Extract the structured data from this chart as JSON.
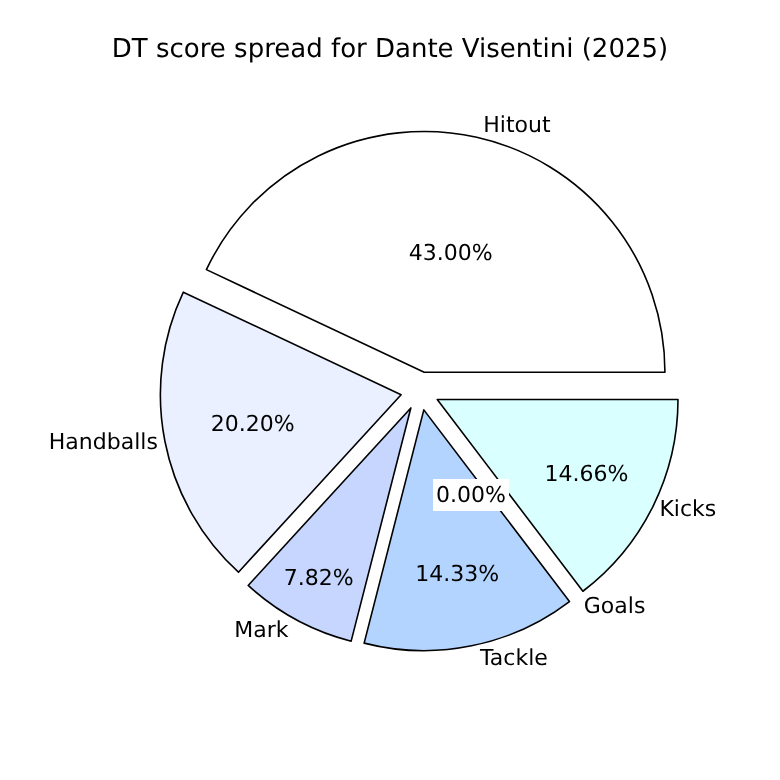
{
  "chart_data": {
    "type": "pie",
    "title": "DT score spread for Dante Visentini (2025)",
    "categories": [
      "Hitout",
      "Handballs",
      "Mark",
      "Tackle",
      "Goals",
      "Kicks"
    ],
    "values": [
      43.0,
      20.2,
      7.82,
      14.33,
      0.0,
      14.66
    ],
    "value_labels": [
      "43.00%",
      "20.20%",
      "7.82%",
      "14.33%",
      "0.00%",
      "14.66%"
    ],
    "colors": [
      "#ffffff",
      "#eaf0ff",
      "#c6d6ff",
      "#b3d4ff",
      "#c0f0f0",
      "#d9ffff"
    ],
    "legend": false
  }
}
